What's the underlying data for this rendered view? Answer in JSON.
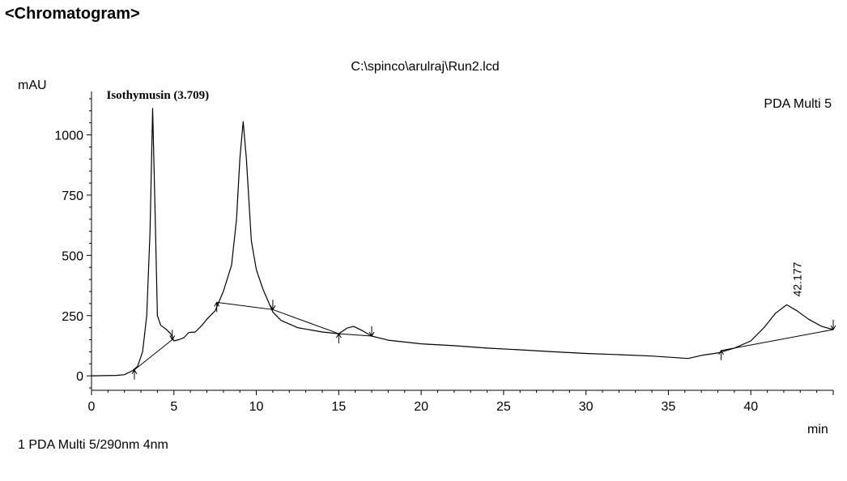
{
  "page": {
    "heading": "<Chromatogram>",
    "footer": "1  PDA Multi 5/290nm 4nm"
  },
  "chart_data": {
    "type": "line",
    "title": "C:\\spinco\\arulraj\\Run2.lcd",
    "channel_label": "PDA Multi 5",
    "xlabel": "min",
    "ylabel": "mAU",
    "xlim": [
      0,
      45
    ],
    "ylim": [
      -60,
      1180
    ],
    "x_ticks": [
      0,
      5,
      10,
      15,
      20,
      25,
      30,
      35,
      40
    ],
    "y_ticks": [
      0,
      250,
      500,
      750,
      1000
    ],
    "grid": false,
    "series": [
      {
        "color": "#000000",
        "points": [
          [
            0,
            0
          ],
          [
            1.5,
            2
          ],
          [
            2.0,
            5
          ],
          [
            2.5,
            22
          ],
          [
            2.8,
            40
          ],
          [
            3.1,
            100
          ],
          [
            3.35,
            250
          ],
          [
            3.55,
            600
          ],
          [
            3.709,
            1110
          ],
          [
            3.85,
            700
          ],
          [
            4.0,
            250
          ],
          [
            4.2,
            210
          ],
          [
            4.5,
            195
          ],
          [
            4.8,
            175
          ],
          [
            5.0,
            145
          ],
          [
            5.3,
            150
          ],
          [
            5.6,
            158
          ],
          [
            5.9,
            180
          ],
          [
            6.3,
            182
          ],
          [
            6.7,
            210
          ],
          [
            7.0,
            235
          ],
          [
            7.5,
            270
          ],
          [
            8.0,
            350
          ],
          [
            8.5,
            460
          ],
          [
            8.8,
            650
          ],
          [
            9.0,
            900
          ],
          [
            9.2,
            1055
          ],
          [
            9.4,
            900
          ],
          [
            9.7,
            560
          ],
          [
            10.0,
            440
          ],
          [
            10.4,
            360
          ],
          [
            11.0,
            265
          ],
          [
            11.5,
            230
          ],
          [
            12.5,
            200
          ],
          [
            14.0,
            182
          ],
          [
            15.0,
            175
          ],
          [
            15.5,
            198
          ],
          [
            15.9,
            205
          ],
          [
            16.5,
            185
          ],
          [
            17.0,
            165
          ],
          [
            18.0,
            148
          ],
          [
            20.0,
            133
          ],
          [
            22.0,
            125
          ],
          [
            24.0,
            115
          ],
          [
            26.0,
            108
          ],
          [
            28.0,
            100
          ],
          [
            30.0,
            93
          ],
          [
            32.0,
            88
          ],
          [
            34.0,
            82
          ],
          [
            36.2,
            72
          ],
          [
            37.0,
            85
          ],
          [
            38.0,
            95
          ],
          [
            39.0,
            115
          ],
          [
            40.0,
            145
          ],
          [
            40.8,
            200
          ],
          [
            41.5,
            260
          ],
          [
            42.177,
            295
          ],
          [
            42.8,
            270
          ],
          [
            43.5,
            235
          ],
          [
            44.3,
            205
          ],
          [
            45.0,
            192
          ]
        ]
      }
    ],
    "baselines": [
      [
        [
          2.6,
          25
        ],
        [
          4.9,
          150
        ]
      ],
      [
        [
          7.6,
          305
        ],
        [
          11.0,
          275
        ]
      ],
      [
        [
          11.0,
          275
        ],
        [
          15.0,
          175
        ]
      ],
      [
        [
          15.0,
          175
        ],
        [
          17.0,
          165
        ]
      ],
      [
        [
          38.2,
          105
        ],
        [
          45.0,
          192
        ]
      ]
    ],
    "integration_markers": [
      {
        "x": 2.6,
        "y": 25,
        "dir": "up"
      },
      {
        "x": 4.9,
        "y": 150,
        "dir": "down"
      },
      {
        "x": 7.6,
        "y": 305,
        "dir": "up"
      },
      {
        "x": 11.0,
        "y": 275,
        "dir": "down"
      },
      {
        "x": 15.0,
        "y": 175,
        "dir": "up"
      },
      {
        "x": 17.0,
        "y": 165,
        "dir": "down"
      },
      {
        "x": 38.2,
        "y": 105,
        "dir": "up"
      },
      {
        "x": 45.0,
        "y": 192,
        "dir": "down"
      }
    ],
    "annotations": [
      {
        "text": "Isothymusin (3.709)",
        "x": 3.709,
        "y": 1110,
        "style": "bold"
      },
      {
        "text": "42.177",
        "x": 42.177,
        "y": 295,
        "style": "rotated"
      }
    ]
  }
}
